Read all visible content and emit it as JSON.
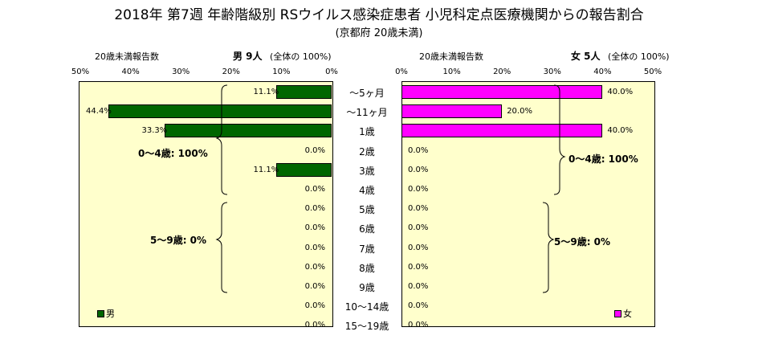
{
  "title": "2018年 第7週 年齢階級別 RSウイルス感染症患者 小児科定点医療機関からの報告割合",
  "subtitle": "(京都府 20歳未満)",
  "male": {
    "header_left": "20歳未満報告数",
    "header_title": "男  9人",
    "header_note": "(全体の 100%)",
    "legend": "男",
    "color": "#006600",
    "bracket_upper": "0～4歳: 100%",
    "bracket_lower": "5～9歳: 0%"
  },
  "female": {
    "header_left": "20歳未満報告数",
    "header_title": "女  5人",
    "header_note": "(全体の 100%)",
    "legend": "女",
    "color": "#ff00ff",
    "bracket_upper": "0～4歳: 100%",
    "bracket_lower": "5～9歳: 0%"
  },
  "chart_data": {
    "type": "bar",
    "orientation": "horizontal-population-pyramid",
    "categories": [
      "～5ヶ月",
      "～11ヶ月",
      "1歳",
      "2歳",
      "3歳",
      "4歳",
      "5歳",
      "6歳",
      "7歳",
      "8歳",
      "9歳",
      "10～14歳",
      "15～19歳"
    ],
    "series": [
      {
        "name": "男",
        "values": [
          11.1,
          44.4,
          33.3,
          0.0,
          11.1,
          0.0,
          0.0,
          0.0,
          0.0,
          0.0,
          0.0,
          0.0,
          0.0
        ],
        "labels": [
          "11.1%",
          "44.4%",
          "33.3%",
          "0.0%",
          "11.1%",
          "0.0%",
          "0.0%",
          "0.0%",
          "0.0%",
          "0.0%",
          "0.0%",
          "0.0%",
          "0.0%"
        ]
      },
      {
        "name": "女",
        "values": [
          40.0,
          20.0,
          40.0,
          0.0,
          0.0,
          0.0,
          0.0,
          0.0,
          0.0,
          0.0,
          0.0,
          0.0,
          0.0
        ],
        "labels": [
          "40.0%",
          "20.0%",
          "40.0%",
          "0.0%",
          "0.0%",
          "0.0%",
          "0.0%",
          "0.0%",
          "0.0%",
          "0.0%",
          "0.0%",
          "0.0%",
          "0.0%"
        ]
      }
    ],
    "male_ticks": [
      "50%",
      "40%",
      "30%",
      "20%",
      "10%",
      "0%"
    ],
    "female_ticks": [
      "0%",
      "10%",
      "20%",
      "30%",
      "40%",
      "50%"
    ],
    "xlim": [
      0,
      50
    ],
    "grid": false
  }
}
